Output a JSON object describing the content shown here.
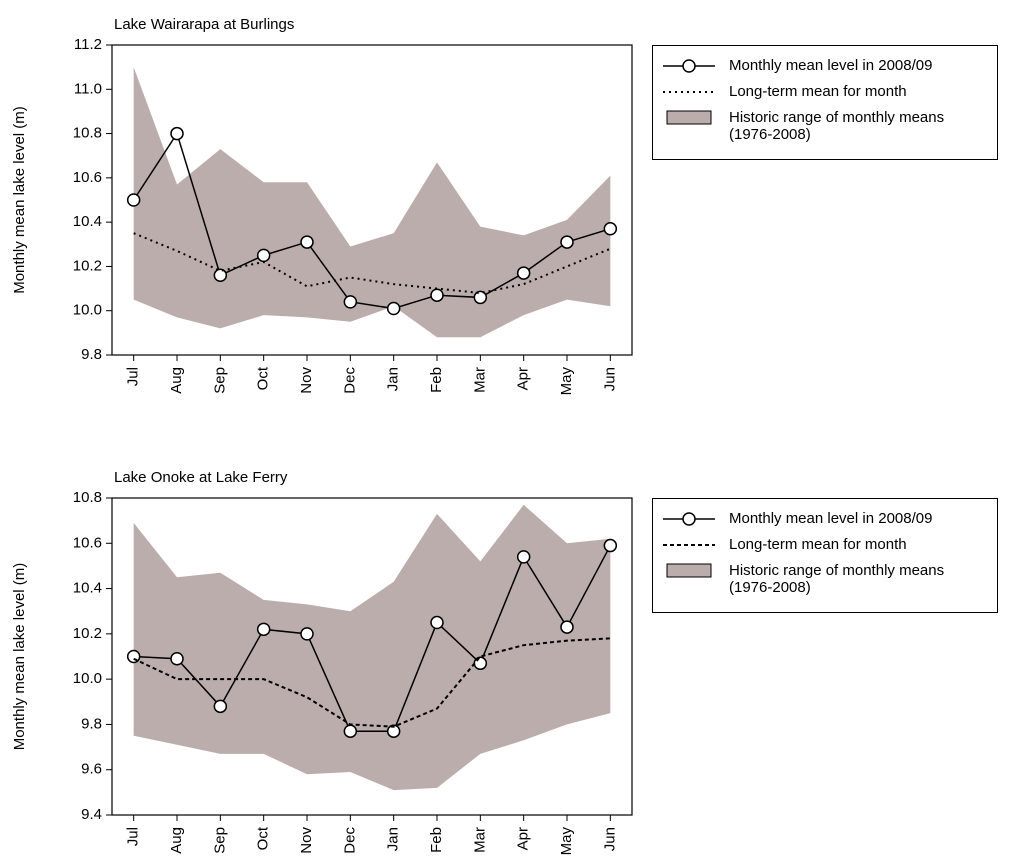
{
  "chart_data": [
    {
      "type": "line",
      "title": "Lake Wairarapa at Burlings",
      "ylabel": "Monthly mean lake level (m)",
      "categories": [
        "Jul",
        "Aug",
        "Sep",
        "Oct",
        "Nov",
        "Dec",
        "Jan",
        "Feb",
        "Mar",
        "Apr",
        "May",
        "Jun"
      ],
      "ylim": [
        9.8,
        11.2
      ],
      "yticks": [
        9.8,
        {
          "value": 10,
          "label": "10.0"
        },
        10.2,
        10.4,
        10.6,
        10.8,
        {
          "value": 11,
          "label": "11.0"
        },
        11.2
      ],
      "legend": "outside right",
      "range": {
        "name": "Historic range of monthly means (1976-2008)",
        "color": "#bcadad",
        "upper": [
          11.1,
          10.57,
          10.73,
          10.58,
          10.58,
          10.29,
          10.35,
          10.67,
          10.38,
          10.34,
          10.41,
          10.61
        ],
        "lower": [
          10.05,
          9.97,
          9.92,
          9.98,
          9.97,
          9.95,
          10.02,
          9.88,
          9.88,
          9.98,
          10.05,
          10.02
        ]
      },
      "series": [
        {
          "name": "Monthly mean level in 2008/09",
          "color": "#000000",
          "style": "solid",
          "markers": true,
          "values": [
            10.5,
            10.8,
            10.16,
            10.25,
            10.31,
            10.04,
            10.01,
            10.07,
            10.06,
            10.17,
            10.31,
            10.37
          ]
        },
        {
          "name": "Long-term mean for month",
          "color": "#000000",
          "style": "dotted",
          "markers": false,
          "values": [
            10.35,
            10.27,
            10.18,
            10.22,
            10.11,
            10.15,
            10.12,
            10.1,
            10.08,
            10.12,
            10.2,
            10.28
          ]
        }
      ]
    },
    {
      "type": "line",
      "title": "Lake Onoke at Lake Ferry",
      "ylabel": "Monthly mean lake level (m)",
      "categories": [
        "Jul",
        "Aug",
        "Sep",
        "Oct",
        "Nov",
        "Dec",
        "Jan",
        "Feb",
        "Mar",
        "Apr",
        "May",
        "Jun"
      ],
      "ylim": [
        9.4,
        10.8
      ],
      "yticks": [
        9.4,
        9.6,
        9.8,
        {
          "value": 10,
          "label": "10.0"
        },
        10.2,
        10.4,
        10.6,
        10.8
      ],
      "legend": "outside right",
      "range": {
        "name": "Historic range of monthly means (1976-2008)",
        "color": "#bcadad",
        "upper": [
          10.69,
          10.45,
          10.47,
          10.35,
          10.33,
          10.3,
          10.43,
          10.73,
          10.52,
          10.77,
          10.6,
          10.62
        ],
        "lower": [
          9.75,
          9.71,
          9.67,
          9.67,
          9.58,
          9.59,
          9.51,
          9.52,
          9.67,
          9.73,
          9.8,
          9.85
        ]
      },
      "series": [
        {
          "name": "Monthly mean level in 2008/09",
          "color": "#000000",
          "style": "solid",
          "markers": true,
          "values": [
            10.1,
            10.09,
            9.88,
            10.22,
            10.2,
            9.77,
            9.77,
            10.25,
            10.07,
            10.54,
            10.23,
            10.59
          ]
        },
        {
          "name": "Long-term mean for month",
          "color": "#000000",
          "style": "dashed",
          "markers": false,
          "values": [
            10.09,
            10.0,
            10.0,
            10.0,
            9.92,
            9.8,
            9.79,
            9.87,
            10.1,
            10.15,
            10.17,
            10.18
          ]
        }
      ]
    }
  ]
}
